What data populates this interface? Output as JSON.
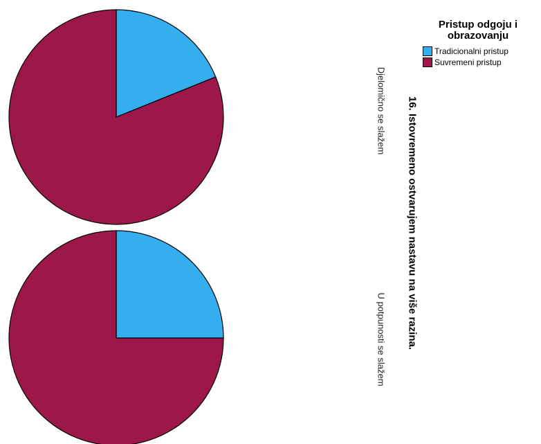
{
  "chart_data": {
    "type": "pie",
    "title": "16. Istovremeno ostvarujem nastavu na više razina.",
    "legend": {
      "title": "Pristup odgoju i obrazovanju",
      "entries": [
        "Tradicionalni pristup",
        "Suvremeni pristup"
      ]
    },
    "colors": [
      "#35aeee",
      "#9b1848"
    ],
    "pies": [
      {
        "label": "Djelomično se slažem",
        "values": [
          18.9,
          81.1
        ]
      },
      {
        "label": "U potpunosti se slažem",
        "values": [
          25.0,
          75.0
        ]
      }
    ]
  }
}
